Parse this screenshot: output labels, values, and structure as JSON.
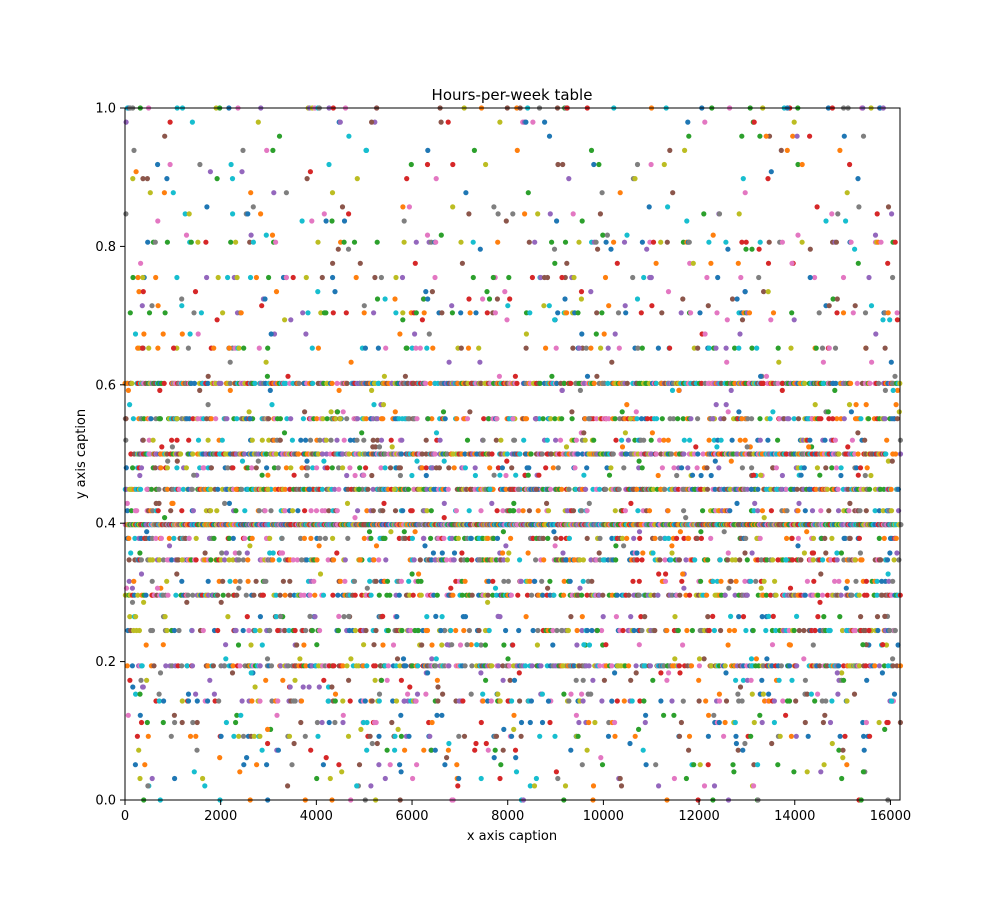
{
  "chart_data": {
    "type": "scatter",
    "title": "Hours-per-week table",
    "xlabel": "x axis caption",
    "ylabel": "y axis caption",
    "xlim": [
      0,
      16200
    ],
    "ylim": [
      0,
      1.0
    ],
    "x_ticks": [
      0,
      2000,
      4000,
      6000,
      8000,
      10000,
      12000,
      14000,
      16000
    ],
    "x_tick_labels": [
      "0",
      "2000",
      "4000",
      "6000",
      "8000",
      "10000",
      "12000",
      "14000",
      "16000"
    ],
    "y_ticks": [
      0,
      0.2,
      0.4,
      0.6,
      0.8,
      1.0
    ],
    "y_tick_labels": [
      "0.0",
      "0.2",
      "0.4",
      "0.6",
      "0.8",
      "1.0"
    ],
    "grid": false,
    "marker": "circle",
    "colors": [
      "#1f77b4",
      "#ff7f0e",
      "#2ca02c",
      "#d62728",
      "#9467bd",
      "#8c564b",
      "#e377c2",
      "#7f7f7f",
      "#bcbd22",
      "#17becf"
    ],
    "bands": [
      {
        "y": 0.398,
        "density": 0.95
      },
      {
        "y": 0.602,
        "density": 0.55
      },
      {
        "y": 0.5,
        "density": 0.5
      },
      {
        "y": 0.449,
        "density": 0.45
      },
      {
        "y": 0.194,
        "density": 0.38
      },
      {
        "y": 0.551,
        "density": 0.3
      },
      {
        "y": 0.296,
        "density": 0.3
      },
      {
        "y": 0.347,
        "density": 0.28
      },
      {
        "y": 0.245,
        "density": 0.22
      },
      {
        "y": 0.143,
        "density": 0.14
      },
      {
        "y": 0.418,
        "density": 0.16
      },
      {
        "y": 0.378,
        "density": 0.16
      },
      {
        "y": 0.48,
        "density": 0.15
      },
      {
        "y": 0.52,
        "density": 0.13
      },
      {
        "y": 0.316,
        "density": 0.11
      },
      {
        "y": 0.704,
        "density": 0.1
      },
      {
        "y": 0.806,
        "density": 0.07
      },
      {
        "y": 0.653,
        "density": 0.08
      },
      {
        "y": 0.092,
        "density": 0.07
      },
      {
        "y": 0.112,
        "density": 0.06
      },
      {
        "y": 0.153,
        "density": 0.05
      },
      {
        "y": 0.173,
        "density": 0.05
      },
      {
        "y": 0.072,
        "density": 0.04
      },
      {
        "y": 0.755,
        "density": 0.05
      },
      {
        "y": 0.847,
        "density": 0.03
      },
      {
        "y": 1.0,
        "density": 0.04
      },
      {
        "y": 0.0,
        "density": 0.02
      },
      {
        "y": 0.051,
        "density": 0.03
      },
      {
        "y": 0.031,
        "density": 0.02
      },
      {
        "y": 0.224,
        "density": 0.04
      },
      {
        "y": 0.265,
        "density": 0.04
      },
      {
        "y": 0.357,
        "density": 0.04
      },
      {
        "y": 0.469,
        "density": 0.04
      },
      {
        "y": 0.561,
        "density": 0.03
      },
      {
        "y": 0.724,
        "density": 0.03
      },
      {
        "y": 0.908,
        "density": 0.01
      }
    ],
    "point_count_estimate": 16200
  }
}
